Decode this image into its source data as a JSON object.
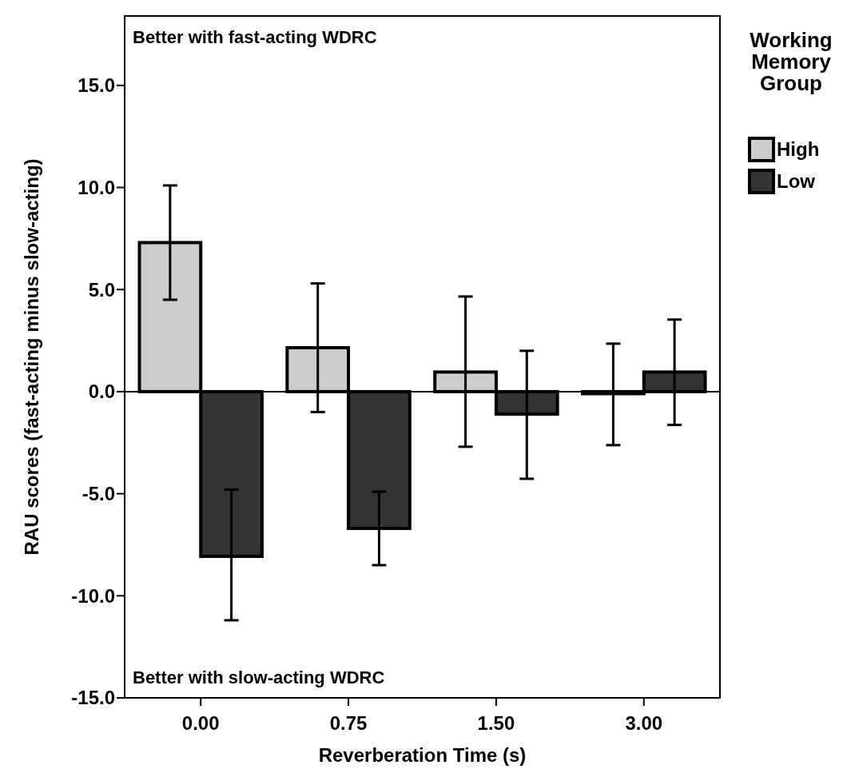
{
  "chart_data": {
    "type": "bar",
    "xlabel": "Reverberation Time (s)",
    "ylabel": "RAU scores (fast-acting minus slow-acting)",
    "legend_title": "Working Memory Group",
    "legend": "right",
    "categories": [
      "0.00",
      "0.75",
      "1.50",
      "3.00"
    ],
    "series": [
      {
        "name": "High",
        "color": "#cccccc",
        "values": [
          7.3,
          2.15,
          0.96,
          -0.1
        ],
        "errors": [
          [
            4.5,
            10.1
          ],
          [
            -1.0,
            5.3
          ],
          [
            -2.7,
            4.66
          ],
          [
            -2.62,
            2.35
          ]
        ]
      },
      {
        "name": "Low",
        "color": "#333333",
        "values": [
          -8.07,
          -6.7,
          -1.1,
          0.96
        ],
        "errors": [
          [
            -11.2,
            -4.8
          ],
          [
            -8.5,
            -4.9
          ],
          [
            -4.27,
            2.0
          ],
          [
            -1.63,
            3.53
          ]
        ]
      }
    ],
    "ylim": [
      -15,
      18.4
    ],
    "yticks": [
      {
        "value": -15,
        "label": "-15.0"
      },
      {
        "value": -10,
        "label": "-10.0"
      },
      {
        "value": -5,
        "label": "-5.0"
      },
      {
        "value": 0,
        "label": "0.0"
      },
      {
        "value": 5,
        "label": "5.0"
      },
      {
        "value": 10,
        "label": "10.0"
      },
      {
        "value": 15,
        "label": "15.0"
      }
    ],
    "ref_lines": [
      {
        "axis": "y",
        "value": 0,
        "label": null,
        "color": "#000000"
      }
    ],
    "annotations": [
      "Better with fast-acting WDRC",
      "Better with slow-acting WDRC"
    ]
  }
}
